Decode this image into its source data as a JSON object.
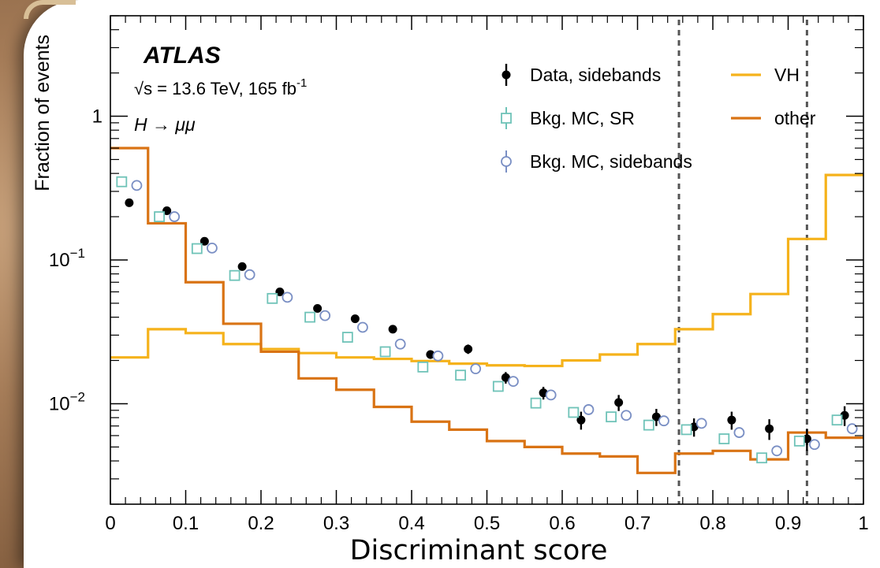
{
  "chart_data": {
    "type": "scatter",
    "xlabel": "Discriminant score",
    "ylabel": "Fraction of events",
    "xlim": [
      0,
      1
    ],
    "ylim": [
      0.002,
      5
    ],
    "yscale": "log",
    "grid": false,
    "legend_position": "top-right",
    "annotations": {
      "experiment": "ATLAS",
      "energy_lumi": "√s = 13.6 TeV, 165 fb",
      "lumi_superscript": "-1",
      "process": "H → μμ"
    },
    "x_ticks": [
      {
        "value": 0,
        "label": "0"
      },
      {
        "value": 0.1,
        "label": "0.1"
      },
      {
        "value": 0.2,
        "label": "0.2"
      },
      {
        "value": 0.3,
        "label": "0.3"
      },
      {
        "value": 0.4,
        "label": "0.4"
      },
      {
        "value": 0.5,
        "label": "0.5"
      },
      {
        "value": 0.6,
        "label": "0.6"
      },
      {
        "value": 0.7,
        "label": "0.7"
      },
      {
        "value": 0.8,
        "label": "0.8"
      },
      {
        "value": 0.9,
        "label": "0.9"
      },
      {
        "value": 1,
        "label": "1"
      }
    ],
    "y_ticks": [
      {
        "value": 0.01,
        "label": "10",
        "sup": "−2"
      },
      {
        "value": 0.1,
        "label": "10",
        "sup": "−1"
      },
      {
        "value": 1,
        "label": "1",
        "sup": ""
      }
    ],
    "bin_edges": [
      0,
      0.05,
      0.1,
      0.15,
      0.2,
      0.25,
      0.3,
      0.35,
      0.4,
      0.45,
      0.5,
      0.55,
      0.6,
      0.65,
      0.7,
      0.75,
      0.8,
      0.85,
      0.9,
      0.95,
      1.0
    ],
    "vertical_lines": [
      0.755,
      0.925
    ],
    "series": [
      {
        "name": "Data, sidebands",
        "kind": "points",
        "marker": "filled-circle",
        "color": "#000000",
        "x": [
          0.025,
          0.075,
          0.125,
          0.175,
          0.225,
          0.275,
          0.325,
          0.375,
          0.425,
          0.475,
          0.525,
          0.575,
          0.625,
          0.675,
          0.725,
          0.775,
          0.825,
          0.875,
          0.925,
          0.975
        ],
        "y": [
          0.25,
          0.22,
          0.135,
          0.09,
          0.06,
          0.046,
          0.039,
          0.033,
          0.022,
          0.024,
          0.0152,
          0.0119,
          0.0077,
          0.0102,
          0.0081,
          0.0069,
          0.0077,
          0.0067,
          0.0057,
          0.0083
        ],
        "err": [
          0.008,
          0.007,
          0.005,
          0.004,
          0.003,
          0.0025,
          0.002,
          0.0018,
          0.0015,
          0.0018,
          0.0014,
          0.0012,
          0.0011,
          0.0013,
          0.0011,
          0.001,
          0.0011,
          0.0011,
          0.001,
          0.0013
        ]
      },
      {
        "name": "Bkg. MC, SR",
        "kind": "points",
        "marker": "open-square",
        "color": "#6fc3b8",
        "x": [
          0.015,
          0.065,
          0.115,
          0.165,
          0.215,
          0.265,
          0.315,
          0.365,
          0.415,
          0.465,
          0.515,
          0.565,
          0.615,
          0.665,
          0.715,
          0.765,
          0.815,
          0.865,
          0.915,
          0.965
        ],
        "y": [
          0.35,
          0.2,
          0.12,
          0.078,
          0.054,
          0.04,
          0.029,
          0.023,
          0.018,
          0.0158,
          0.0132,
          0.0101,
          0.0087,
          0.0081,
          0.0071,
          0.0066,
          0.0057,
          0.0042,
          0.0055,
          0.0077
        ]
      },
      {
        "name": "Bkg. MC, sidebands",
        "kind": "points",
        "marker": "open-circle",
        "color": "#7a8fc4",
        "x": [
          0.035,
          0.085,
          0.135,
          0.185,
          0.235,
          0.285,
          0.335,
          0.385,
          0.435,
          0.485,
          0.535,
          0.585,
          0.635,
          0.685,
          0.735,
          0.785,
          0.835,
          0.885,
          0.935,
          0.985
        ],
        "y": [
          0.33,
          0.2,
          0.121,
          0.079,
          0.055,
          0.041,
          0.034,
          0.026,
          0.0215,
          0.0175,
          0.0143,
          0.0115,
          0.0091,
          0.0083,
          0.0076,
          0.0073,
          0.0063,
          0.0047,
          0.0052,
          0.0067
        ]
      },
      {
        "name": "VH",
        "kind": "step",
        "color": "#f5b21b",
        "y": [
          0.021,
          0.033,
          0.031,
          0.026,
          0.024,
          0.0225,
          0.021,
          0.0205,
          0.0198,
          0.019,
          0.0185,
          0.0183,
          0.02,
          0.022,
          0.026,
          0.033,
          0.042,
          0.058,
          0.14,
          0.39
        ]
      },
      {
        "name": "other",
        "kind": "step",
        "color": "#d97314",
        "y": [
          0.6,
          0.18,
          0.07,
          0.036,
          0.023,
          0.015,
          0.0125,
          0.0095,
          0.0075,
          0.0066,
          0.0055,
          0.005,
          0.0045,
          0.0043,
          0.0033,
          0.0045,
          0.0047,
          0.0041,
          0.0063,
          0.0058
        ]
      }
    ]
  }
}
